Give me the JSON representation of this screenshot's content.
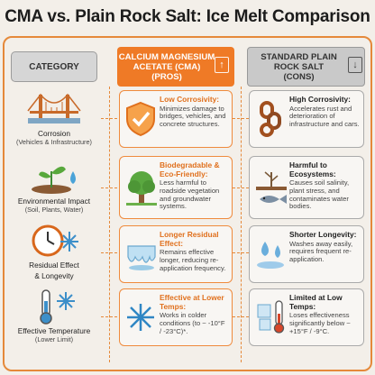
{
  "title": "CMA vs. Plain Rock Salt: Ice Melt Comparison",
  "headers": {
    "category": "CATEGORY",
    "cma": [
      "CALCIUM MAGNESIUM",
      "ACETATE (CMA)",
      "(PROS)"
    ],
    "salt": [
      "STANDARD PLAIN",
      "ROCK SALT",
      "(CONS)"
    ],
    "cma_arrow": "↑",
    "salt_arrow": "↓"
  },
  "categories": [
    {
      "label": "Corrosion",
      "sub": "(Vehicles & Infrastructure)",
      "icon": "bridge-icon"
    },
    {
      "label": "Environmental Impact",
      "sub": "(Soil, Plants, Water)",
      "icon": "sprout-water-icon"
    },
    {
      "label": "Residual Effect",
      "sub": "& Longevity",
      "icon": "clock-snowflake-icon"
    },
    {
      "label": "Effective Temperature",
      "sub": "(Lower Limit)",
      "icon": "thermometer-snowflake-icon"
    }
  ],
  "cma_cards": [
    {
      "heading": "Low Corrosivity:",
      "body": "Minimizes damage to bridges, vehicles, and concrete structures.",
      "icon": "shield-check-icon"
    },
    {
      "heading": "Biodegradable & Eco-Friendly:",
      "body": "Less harmful to roadside vegetation and groundwater systems.",
      "icon": "tree-icon"
    },
    {
      "heading": "Longer Residual Effect:",
      "body": "Remains effective longer, reducing re-application frequency.",
      "icon": "melting-ice-icon"
    },
    {
      "heading": "Effective at Lower Temps:",
      "body": "Works in colder conditions (to ~ -10°F / -23°C)*.",
      "icon": "snowflake-icon"
    }
  ],
  "salt_cards": [
    {
      "heading": "High Corrosivity:",
      "body": "Accelerates rust and deterioration of infrastructure and cars.",
      "icon": "rusty-chain-icon"
    },
    {
      "heading": "Harmful to Ecosystems:",
      "body": "Causes soil salinity, plant stress, and contaminates water bodies.",
      "icon": "dead-plant-fish-icon"
    },
    {
      "heading": "Shorter Longevity:",
      "body": "Washes away easily, requires frequent re-application.",
      "icon": "water-splash-icon"
    },
    {
      "heading": "Limited at Low Temps:",
      "body": "Loses effectiveness significantly below ~ +15°F / -9°C.",
      "icon": "thermometer-ice-icon"
    }
  ],
  "colors": {
    "accent": "#ef7a26",
    "frame": "#e5893a",
    "neutral": "#c9c9c9",
    "background": "#f3efe9"
  }
}
